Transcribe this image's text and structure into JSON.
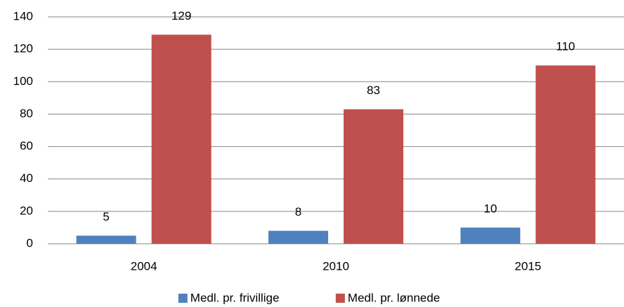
{
  "chart_data": {
    "type": "bar",
    "categories": [
      "2004",
      "2010",
      "2015"
    ],
    "series": [
      {
        "name": "Medl. pr. frivillige",
        "color": "#4f81bd",
        "values": [
          5,
          8,
          10
        ]
      },
      {
        "name": "Medl. pr. lønnede",
        "color": "#c0504d",
        "values": [
          129,
          83,
          110
        ]
      }
    ],
    "ylim": [
      0,
      140
    ],
    "yticks": [
      0,
      20,
      40,
      60,
      80,
      100,
      120,
      140
    ],
    "grid": true,
    "legend": "bottom"
  }
}
